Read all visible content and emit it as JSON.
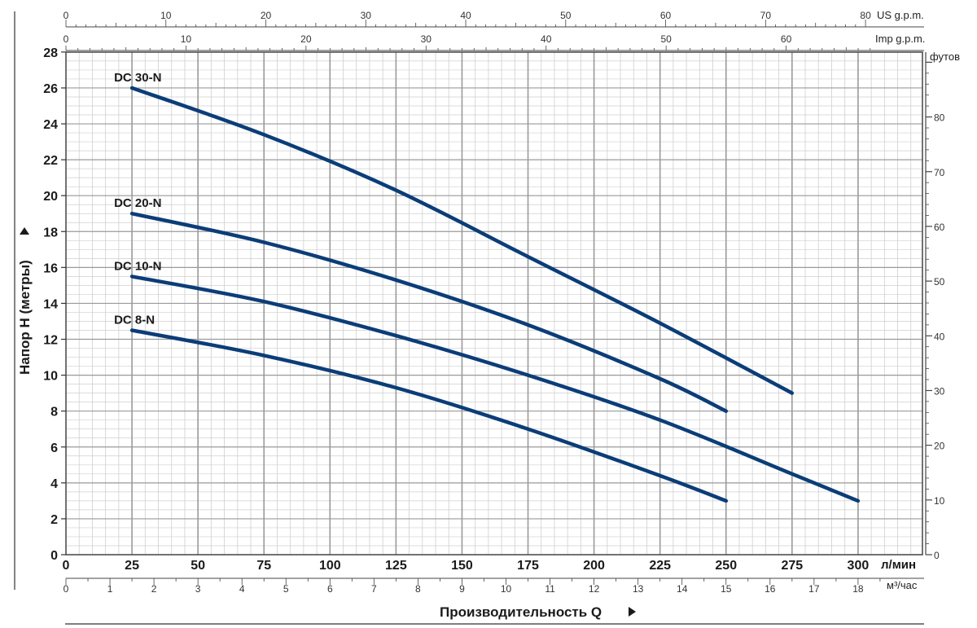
{
  "chart_data": {
    "type": "line",
    "title": "",
    "xlabel": "Производительность Q",
    "ylabel": "Напор H (метры)",
    "x_unit": "л/мин",
    "xlim": [
      0,
      325
    ],
    "ylim": [
      0,
      28
    ],
    "x_ticks": [
      0,
      25,
      50,
      75,
      100,
      125,
      150,
      175,
      200,
      225,
      250,
      275,
      300
    ],
    "y_ticks": [
      0,
      2,
      4,
      6,
      8,
      10,
      12,
      14,
      16,
      18,
      20,
      22,
      24,
      26,
      28
    ],
    "grid": true,
    "right_axis": {
      "unit": "футов",
      "ticks": [
        0,
        10,
        20,
        30,
        40,
        50,
        60,
        70,
        80
      ]
    },
    "top_axis_us": {
      "unit": "US g.p.m.",
      "ticks": [
        0,
        10,
        20,
        30,
        40,
        50,
        60,
        70,
        80
      ]
    },
    "top_axis_imp": {
      "unit": "Imp g.p.m.",
      "ticks": [
        0,
        10,
        20,
        30,
        40,
        50,
        60
      ]
    },
    "bottom_axis_m3": {
      "unit": "м³/час",
      "ticks": [
        0,
        1,
        2,
        3,
        4,
        5,
        6,
        7,
        8,
        9,
        10,
        11,
        12,
        13,
        14,
        15,
        16,
        17,
        18
      ]
    },
    "series": [
      {
        "name": "DC 30-N",
        "x": [
          25,
          75,
          125,
          175,
          225,
          275
        ],
        "y": [
          26,
          23.4,
          20.3,
          16.6,
          12.9,
          9
        ]
      },
      {
        "name": "DC 20-N",
        "x": [
          25,
          75,
          125,
          175,
          225,
          250
        ],
        "y": [
          19,
          17.4,
          15.3,
          12.8,
          9.8,
          8
        ]
      },
      {
        "name": "DC 10-N",
        "x": [
          25,
          75,
          125,
          175,
          225,
          275,
          300
        ],
        "y": [
          15.5,
          14.1,
          12.2,
          10,
          7.5,
          4.5,
          3
        ]
      },
      {
        "name": "DC 8-N",
        "x": [
          25,
          75,
          125,
          175,
          225,
          250
        ],
        "y": [
          12.5,
          11.1,
          9.3,
          7,
          4.4,
          3
        ]
      }
    ],
    "colors": {
      "line": "#0b3d78",
      "grid_major": "#9a9a9a",
      "grid_minor": "#cfcfcf",
      "text": "#1a1a1a"
    }
  }
}
